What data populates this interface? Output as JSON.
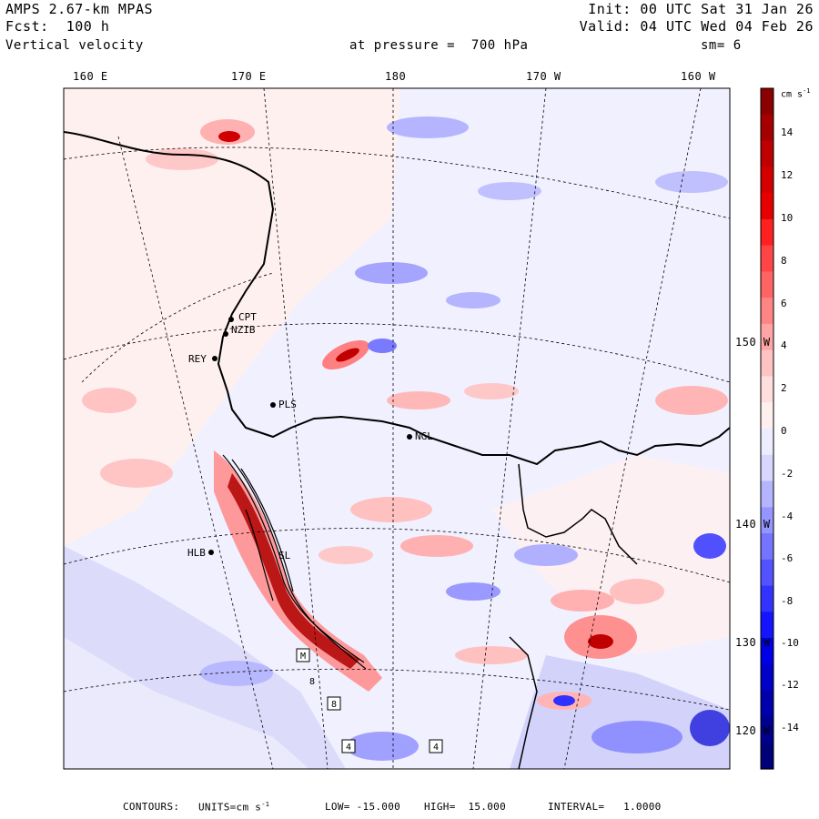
{
  "header": {
    "model": "AMPS 2.67-km MPAS",
    "forecast": "Fcst:  100 h",
    "field": "Vertical velocity",
    "init": "Init: 00 UTC Sat 31 Jan 26",
    "valid": "Valid: 04 UTC Wed 04 Feb 26",
    "level": "at pressure =  700 hPa",
    "smooth": "sm= 6"
  },
  "lon_labels": [
    "160 E",
    "170 E",
    "180",
    "170 W",
    "160 W"
  ],
  "lat_labels": [
    "150 W",
    "140 W",
    "130 W",
    "120 W"
  ],
  "stations": [
    {
      "id": "CPT"
    },
    {
      "id": "NZIB"
    },
    {
      "id": "REY"
    },
    {
      "id": "PLS"
    },
    {
      "id": "NGL"
    },
    {
      "id": "HLB"
    },
    {
      "id": "SL"
    },
    {
      "id": "M"
    },
    {
      "id": "8"
    },
    {
      "id": "8"
    },
    {
      "id": "4"
    },
    {
      "id": "4"
    }
  ],
  "colorbar": {
    "units": "cm s",
    "units_exp": "-1",
    "levels": [
      14,
      12,
      10,
      8,
      6,
      4,
      2,
      0,
      -2,
      -4,
      -6,
      -8,
      -10,
      -12,
      -14
    ],
    "colors": {
      "pos": [
        "#8b0000",
        "#a50000",
        "#be0000",
        "#d40000",
        "#e60000",
        "#ff2020",
        "#ff4545",
        "#ff6464",
        "#ff8585",
        "#ffa5a5",
        "#ffc3c3",
        "#ffdede",
        "#fff0f0"
      ],
      "neg": [
        "#ededff",
        "#d6d6ff",
        "#b5b5ff",
        "#9595ff",
        "#7474ff",
        "#5252ff",
        "#3333ff",
        "#1414ff",
        "#0000e6",
        "#0000c8",
        "#0000aa",
        "#000090",
        "#000078"
      ]
    }
  },
  "footer": {
    "label": "CONTOURS:",
    "units_text": "UNITS=cm s",
    "units_exp": "-1",
    "low": "LOW= -15.000",
    "high": "HIGH=  15.000",
    "interval": "INTERVAL=   1.0000"
  }
}
